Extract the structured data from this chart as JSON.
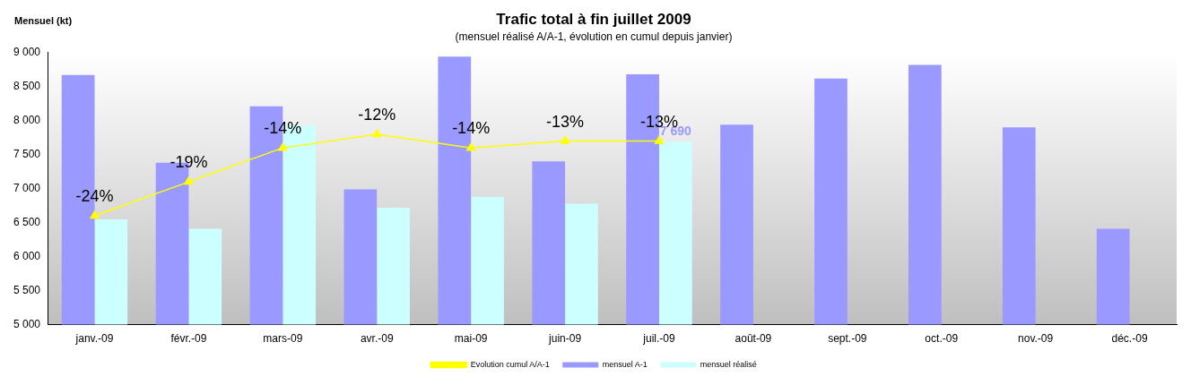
{
  "chart_data": {
    "type": "bar",
    "title": "Trafic total à fin juillet 2009",
    "subtitle": "(mensuel réalisé A/A-1, évolution en cumul depuis janvier)",
    "ylabel": "Mensuel (kt)",
    "categories": [
      "janv.-09",
      "févr.-09",
      "mars-09",
      "avr.-09",
      "mai-09",
      "juin-09",
      "juil.-09",
      "août-09",
      "sept.-09",
      "oct.-09",
      "nov.-09",
      "déc.-09"
    ],
    "series": [
      {
        "name": "mensuel A-1",
        "color": "#9999ff",
        "values": [
          8670,
          7380,
          8210,
          6990,
          8940,
          7400,
          8680,
          7940,
          8620,
          8820,
          7900,
          6410
        ]
      },
      {
        "name": "mensuel réalisé",
        "color": "#ccffff",
        "values": [
          6550,
          6410,
          7930,
          6720,
          6880,
          6780,
          7690,
          null,
          null,
          null,
          null,
          null
        ],
        "value_labels": [
          null,
          null,
          null,
          null,
          null,
          null,
          "7 690",
          null,
          null,
          null,
          null,
          null
        ]
      },
      {
        "name": "Evolution cumul A/A-1",
        "type": "line",
        "axis": "y2",
        "color": "#ffff00",
        "values": [
          -24,
          -19,
          -14,
          -12,
          -14,
          -13,
          -13,
          null,
          null,
          null,
          null,
          null
        ],
        "value_labels": [
          "-24%",
          "-19%",
          "-14%",
          "-12%",
          "-14%",
          "-13%",
          "-13%",
          null,
          null,
          null,
          null,
          null
        ]
      }
    ],
    "ylim": [
      5000,
      9000
    ],
    "yticks": [
      {
        "value": 5000,
        "label": "5 000"
      },
      {
        "value": 5500,
        "label": "5 500"
      },
      {
        "value": 6000,
        "label": "6 000"
      },
      {
        "value": 6500,
        "label": "6 500"
      },
      {
        "value": 7000,
        "label": "7 000"
      },
      {
        "value": 7500,
        "label": "7 500"
      },
      {
        "value": 8000,
        "label": "8 000"
      },
      {
        "value": 8500,
        "label": "8 500"
      },
      {
        "value": 9000,
        "label": "9 000"
      }
    ],
    "grid": false,
    "legend": "bottom",
    "marker": "triangle",
    "line_style": "solid"
  }
}
